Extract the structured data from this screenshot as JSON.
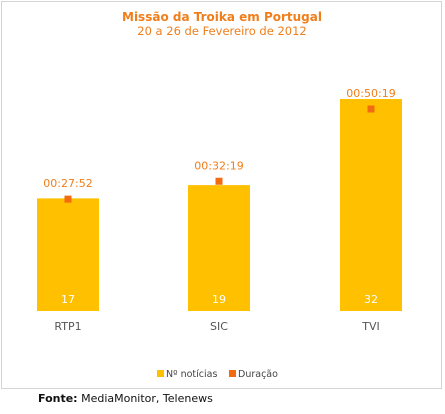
{
  "chart_data": {
    "type": "bar",
    "title": "Missão da Troika em Portugal",
    "subtitle": "20 a 26 de Fevereiro de 2012",
    "categories": [
      "RTP1",
      "SIC",
      "TVI"
    ],
    "series": [
      {
        "name": "Nº notícias",
        "values": [
          17,
          19,
          32
        ],
        "color": "#ffc000"
      },
      {
        "name": "Duração",
        "values": [
          "00:27:52",
          "00:32:19",
          "00:50:19"
        ],
        "color": "#f26b10"
      }
    ],
    "legend_position": "bottom-center"
  },
  "source": {
    "label": "Fonte:",
    "text": " MediaMonitor, Telenews"
  }
}
